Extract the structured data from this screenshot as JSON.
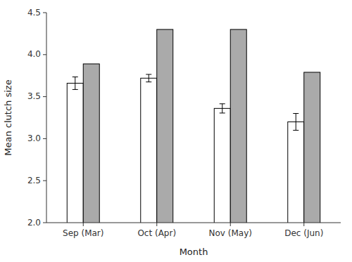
{
  "chart_data": {
    "type": "bar",
    "categories": [
      "Sep (Mar)",
      "Oct (Apr)",
      "Nov (May)",
      "Dec (Jun)"
    ],
    "series": [
      {
        "color": "#ffffff",
        "values": [
          3.66,
          3.72,
          3.36,
          3.2
        ],
        "errors": [
          0.075,
          0.045,
          0.055,
          0.1
        ]
      },
      {
        "color": "#aaaaaa",
        "values": [
          3.89,
          4.3,
          4.3,
          3.79
        ]
      }
    ],
    "xlabel": "Month",
    "ylabel": "Mean clutch size",
    "ylim": [
      2.0,
      4.5
    ],
    "yticks": [
      {
        "value": 2.0,
        "label": "2.0"
      },
      2.5,
      {
        "value": 3.0,
        "label": "3.0"
      },
      3.5,
      {
        "value": 4.0,
        "label": "4.0"
      },
      4.5
    ],
    "grid": false
  }
}
